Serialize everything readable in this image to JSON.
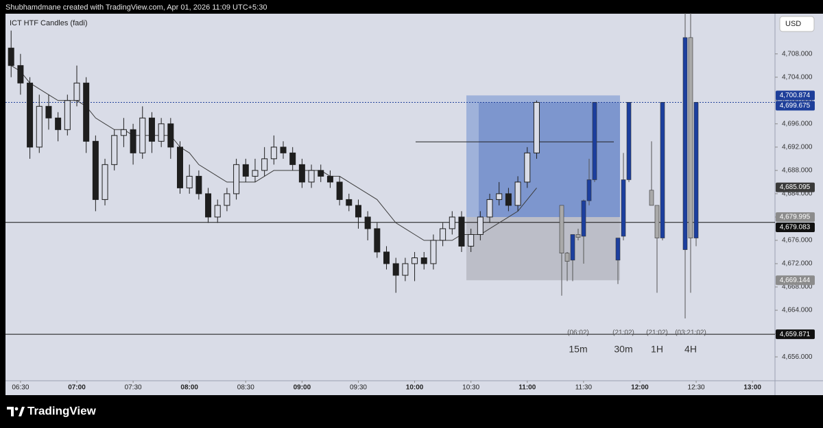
{
  "header": {
    "attribution": "Shubhamdmane created with TradingView.com, Apr 01, 2026 11:09 UTC+5:30"
  },
  "chart_data": {
    "type": "candlestick",
    "title": "ICT HTF Candles (fadi)",
    "currency": "USD",
    "color": "#1e1e1e",
    "x": [
      "06:25",
      "06:30",
      "06:35",
      "06:40",
      "06:45",
      "06:50",
      "06:55",
      "07:00",
      "07:05",
      "07:10",
      "07:15",
      "07:20",
      "07:25",
      "07:30",
      "07:35",
      "07:40",
      "07:45",
      "07:50",
      "07:55",
      "08:00",
      "08:05",
      "08:10",
      "08:15",
      "08:20",
      "08:25",
      "08:30",
      "08:35",
      "08:40",
      "08:45",
      "08:50",
      "08:55",
      "09:00",
      "09:05",
      "09:10",
      "09:15",
      "09:20",
      "09:25",
      "09:30",
      "09:35",
      "09:40",
      "09:45",
      "09:50",
      "09:55",
      "10:00",
      "10:05",
      "10:10",
      "10:15",
      "10:20",
      "10:25",
      "10:30",
      "10:35",
      "10:40",
      "10:45",
      "10:50",
      "10:55",
      "11:00",
      "11:05"
    ],
    "ohlc": [
      [
        4709,
        4712,
        4704,
        4706
      ],
      [
        4706,
        4708,
        4701,
        4703
      ],
      [
        4703,
        4704,
        4690,
        4692
      ],
      [
        4692,
        4701,
        4691,
        4699
      ],
      [
        4699,
        4701,
        4695,
        4697
      ],
      [
        4697,
        4698,
        4693,
        4695
      ],
      [
        4695,
        4701,
        4694,
        4700
      ],
      [
        4700,
        4706,
        4699,
        4703
      ],
      [
        4703,
        4704,
        4691,
        4693
      ],
      [
        4693,
        4694,
        4681,
        4683
      ],
      [
        4683,
        4690,
        4682,
        4689
      ],
      [
        4689,
        4695,
        4688,
        4694
      ],
      [
        4694,
        4697,
        4692,
        4695
      ],
      [
        4695,
        4696,
        4689,
        4691
      ],
      [
        4691,
        4699,
        4690,
        4697
      ],
      [
        4697,
        4698,
        4691,
        4693
      ],
      [
        4693,
        4697,
        4692,
        4696
      ],
      [
        4696,
        4697,
        4690,
        4692
      ],
      [
        4692,
        4693,
        4684,
        4685
      ],
      [
        4685,
        4689,
        4684,
        4687
      ],
      [
        4687,
        4688,
        4683,
        4684
      ],
      [
        4684,
        4685,
        4679,
        4680
      ],
      [
        4680,
        4683,
        4679,
        4682
      ],
      [
        4682,
        4685,
        4681,
        4684
      ],
      [
        4684,
        4690,
        4683,
        4689
      ],
      [
        4689,
        4690,
        4686,
        4687
      ],
      [
        4687,
        4690,
        4686,
        4688
      ],
      [
        4688,
        4692,
        4687,
        4690
      ],
      [
        4690,
        4694,
        4689,
        4692
      ],
      [
        4692,
        4693,
        4690,
        4691
      ],
      [
        4691,
        4692,
        4688,
        4689
      ],
      [
        4689,
        4690,
        4685,
        4686
      ],
      [
        4686,
        4689,
        4685,
        4688
      ],
      [
        4688,
        4689,
        4686,
        4687
      ],
      [
        4687,
        4688,
        4685,
        4686
      ],
      [
        4686,
        4687,
        4682,
        4683
      ],
      [
        4683,
        4684,
        4681,
        4682
      ],
      [
        4682,
        4683,
        4678,
        4680
      ],
      [
        4680,
        4681,
        4676,
        4678
      ],
      [
        4678,
        4679,
        4673,
        4674
      ],
      [
        4674,
        4675,
        4671,
        4672
      ],
      [
        4672,
        4673,
        4667,
        4670
      ],
      [
        4670,
        4673,
        4669,
        4672
      ],
      [
        4672,
        4674,
        4669,
        4673
      ],
      [
        4673,
        4674,
        4671,
        4672
      ],
      [
        4672,
        4677,
        4671,
        4676
      ],
      [
        4676,
        4679,
        4675,
        4678
      ],
      [
        4678,
        4681,
        4677,
        4680
      ],
      [
        4680,
        4681,
        4674,
        4675
      ],
      [
        4675,
        4678,
        4674,
        4677
      ],
      [
        4677,
        4681,
        4676,
        4680
      ],
      [
        4680,
        4684,
        4679,
        4683
      ],
      [
        4683,
        4686,
        4682,
        4684
      ],
      [
        4684,
        4685,
        4681,
        4682
      ],
      [
        4682,
        4687,
        4681,
        4686
      ],
      [
        4686,
        4692,
        4685,
        4691
      ],
      [
        4691,
        4700,
        4690,
        4699.675
      ]
    ],
    "ema": {
      "color": "#3c3c3c",
      "values": [
        4706,
        4705,
        4703,
        4702,
        4701,
        4700,
        4700,
        4700,
        4699,
        4697,
        4696,
        4695,
        4695,
        4694,
        4694,
        4694,
        4694,
        4694,
        4692,
        4691,
        4689,
        4688,
        4687,
        4686,
        4686,
        4686,
        4686,
        4687,
        4688,
        4688,
        4688,
        4688,
        4688,
        4688,
        4687,
        4687,
        4686,
        4685,
        4684,
        4683,
        4681,
        4679,
        4678,
        4677,
        4676,
        4676,
        4676,
        4676,
        4677,
        4677,
        4677,
        4678,
        4679,
        4680,
        4681,
        4683,
        4685
      ]
    },
    "xlim": [
      "06:22",
      "13:12"
    ],
    "xticks": [
      "06:30",
      "07:00",
      "07:30",
      "08:00",
      "08:30",
      "09:00",
      "09:30",
      "10:00",
      "10:30",
      "11:00",
      "11:30",
      "12:00",
      "12:30",
      "13:00"
    ],
    "ylim": [
      4651.9,
      4714.9
    ],
    "yticks": [
      {
        "value": 4656,
        "label": "4,656.000"
      },
      {
        "value": 4660,
        "label": "4,660.000"
      },
      {
        "value": 4664,
        "label": "4,664.000"
      },
      {
        "value": 4668,
        "label": "4,668.000"
      },
      {
        "value": 4672,
        "label": "4,672.000"
      },
      {
        "value": 4676,
        "label": "4,676.000"
      },
      {
        "value": 4680,
        "label": "4,680.000"
      },
      {
        "value": 4684,
        "label": "4,684.000"
      },
      {
        "value": 4688,
        "label": "4,688.000"
      },
      {
        "value": 4692,
        "label": "4,692.000"
      },
      {
        "value": 4696,
        "label": "4,696.000"
      },
      {
        "value": 4700,
        "label": "4,700.000"
      },
      {
        "value": 4704,
        "label": "4,704.000"
      },
      {
        "value": 4708,
        "label": "4,708.000"
      }
    ],
    "price_labels": [
      {
        "value": 4700.874,
        "label": "4,700.874",
        "bg": "#1e3f9a"
      },
      {
        "value": 4699.675,
        "label": "4,699.675",
        "bg": "#1e3f9a",
        "line": "dotted"
      },
      {
        "value": 4685.095,
        "label": "4,685.095",
        "bg": "#3a3a3a"
      },
      {
        "value": 4679.995,
        "label": "4,679.995",
        "bg": "#8c8c8c"
      },
      {
        "value": 4679.083,
        "label": "4,679.083",
        "bg": "#111111",
        "line": "solid"
      },
      {
        "value": 4669.144,
        "label": "4,669.144",
        "bg": "#8c8c8c"
      },
      {
        "value": 4659.871,
        "label": "4,659.871",
        "bg": "#111111",
        "line": "solid"
      }
    ],
    "levels": [
      {
        "price": 4692.9
      }
    ],
    "bull_color": "#1c3f9e",
    "bear_color": "#a9a9a9",
    "htf": [
      {
        "timeframe": "15m",
        "countdown": "(06:02)",
        "candles": [
          [
            4682,
            4682,
            4666.5,
            4673.8
          ],
          [
            4673.8,
            4674,
            4669,
            4672.4
          ],
          [
            4672.6,
            4677,
            4669,
            4677
          ],
          [
            4677,
            4678,
            4676,
            4676.5
          ],
          [
            4676.7,
            4683,
            4672,
            4682.8
          ],
          [
            4682.8,
            4690,
            4682,
            4686.4
          ],
          [
            4686.4,
            4699.7,
            4686,
            4699.7
          ]
        ]
      },
      {
        "timeframe": "30m",
        "countdown": "(21:02)",
        "candles": [
          [
            4672.6,
            4676.4,
            4668.5,
            4676.4
          ],
          [
            4676.7,
            4691,
            4676,
            4686.4
          ],
          [
            4686.4,
            4699.7,
            4686,
            4699.7
          ]
        ]
      },
      {
        "timeframe": "1H",
        "countdown": "(21:02)",
        "candles": [
          [
            4684.6,
            4693,
            4682,
            4682
          ],
          [
            4682,
            4682,
            4667,
            4676.4
          ],
          [
            4676.4,
            4699.7,
            4676,
            4699.7
          ]
        ]
      },
      {
        "timeframe": "4H",
        "countdown": "(03:21:02)",
        "candles": [
          [
            4674.4,
            4715,
            4662.6,
            4710.8
          ],
          [
            4710.8,
            4715,
            4667,
            4676.4
          ],
          [
            4676.4,
            4699.7,
            4675,
            4699.7
          ]
        ]
      }
    ]
  },
  "footer": {
    "brand": "TradingView"
  }
}
